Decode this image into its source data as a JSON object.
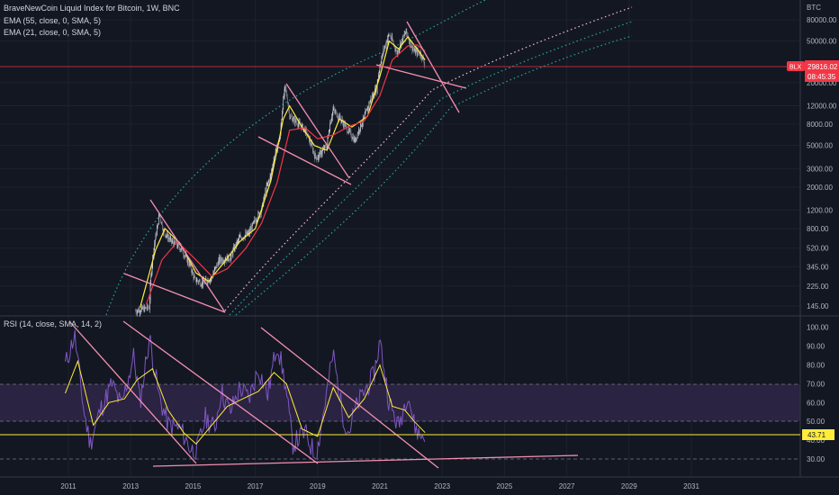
{
  "header": {
    "symbol_line": "BraveNewCoin Liquid Index for Bitcoin, 1W, BNC",
    "ema55": "EMA (55, close, 0, SMA, 5)",
    "ema21": "EMA (21, close, 0, SMA, 5)",
    "rsi_title": "RSI (14, close, SMA, 14, 2)"
  },
  "price_axis": {
    "currency": "BTC",
    "ticks": [
      "80000.00",
      "50000.00",
      "20000.00",
      "12000.00",
      "8000.00",
      "5000.00",
      "3000.00",
      "2000.00",
      "1200.00",
      "800.00",
      "520.00",
      "345.00",
      "225.00",
      "145.00"
    ],
    "last_label": "BLX",
    "last_price": "29816.02",
    "countdown": "08:45:35"
  },
  "rsi_axis": {
    "ticks": [
      "100.00",
      "90.00",
      "80.00",
      "70.00",
      "60.00",
      "50.00",
      "40.00",
      "30.00"
    ],
    "current": "43.71"
  },
  "time_axis": [
    "2011",
    "2013",
    "2015",
    "2017",
    "2019",
    "2021",
    "2023",
    "2025",
    "2027",
    "2029",
    "2031"
  ],
  "colors": {
    "background": "#131722",
    "candle_up": "#d1d4dc",
    "candle_down": "#787b86",
    "ema55": "#f23645",
    "ema21": "#ffeb3b",
    "trendline": "#f48fb1",
    "band_cyan": "#26a69a",
    "band_pink": "#f8bbd0",
    "rsi_line": "#7e57c2",
    "rsi_ma": "#ffeb3b",
    "rsi_band": "#2a2342",
    "price_badge": "#f23645"
  },
  "chart_data": [
    {
      "type": "line",
      "title": "BraveNewCoin Liquid Index for Bitcoin, 1W, BNC",
      "scale": "log",
      "ylim": [
        130,
        120000
      ],
      "xlim": [
        2010.2,
        2033.6
      ],
      "x_ticks": [
        2011,
        2013,
        2015,
        2017,
        2019,
        2021,
        2023,
        2025,
        2027,
        2029,
        2031
      ],
      "series": [
        {
          "name": "BraveNewCoin Liquid Index for Bitcoin",
          "x": [
            2013.15,
            2013.6,
            2013.85,
            2013.92,
            2014.05,
            2014.3,
            2014.6,
            2014.9,
            2015.05,
            2015.3,
            2015.6,
            2015.85,
            2016.2,
            2016.5,
            2016.8,
            2017.2,
            2017.5,
            2017.8,
            2017.96,
            2018.1,
            2018.3,
            2018.6,
            2018.9,
            2019.0,
            2019.3,
            2019.5,
            2019.9,
            2020.2,
            2020.5,
            2020.9,
            2021.0,
            2021.3,
            2021.55,
            2021.85,
            2021.97,
            2022.1,
            2022.3,
            2022.45
          ],
          "y": [
            130,
            140,
            800,
            1100,
            750,
            600,
            520,
            350,
            260,
            240,
            270,
            400,
            420,
            650,
            720,
            1200,
            2600,
            6000,
            18000,
            9500,
            8500,
            7000,
            4000,
            3800,
            5000,
            11000,
            7500,
            5500,
            9200,
            18000,
            29000,
            58000,
            38000,
            62000,
            47000,
            40000,
            38000,
            29816
          ]
        },
        {
          "name": "EMA 21",
          "x": [
            2013.3,
            2013.8,
            2014.1,
            2014.6,
            2015.1,
            2015.5,
            2016.0,
            2016.5,
            2017.0,
            2017.5,
            2017.9,
            2018.1,
            2018.5,
            2018.9,
            2019.3,
            2019.7,
            2020.1,
            2020.6,
            2021.0,
            2021.3,
            2021.6,
            2021.9,
            2022.2,
            2022.45
          ],
          "y": [
            140,
            500,
            800,
            570,
            300,
            250,
            380,
            600,
            800,
            2300,
            9000,
            12000,
            7500,
            5000,
            4500,
            9000,
            7500,
            9500,
            23000,
            50000,
            42000,
            55000,
            42000,
            33000
          ]
        },
        {
          "name": "EMA 55",
          "x": [
            2013.5,
            2014.0,
            2014.5,
            2015.1,
            2015.6,
            2016.1,
            2016.7,
            2017.2,
            2017.7,
            2018.1,
            2018.6,
            2019.0,
            2019.5,
            2020.0,
            2020.5,
            2021.0,
            2021.4,
            2021.9,
            2022.2,
            2022.45
          ],
          "y": [
            150,
            400,
            600,
            400,
            280,
            330,
            520,
            900,
            2200,
            7000,
            7400,
            5800,
            6300,
            7600,
            8600,
            15000,
            33000,
            45000,
            46000,
            40000
          ]
        }
      ],
      "last_price": 29816.02
    },
    {
      "type": "line",
      "title": "RSI (14, close, SMA, 14, 2)",
      "ylim": [
        22,
        108
      ],
      "bands": [
        30,
        50,
        70
      ],
      "current": 43.71,
      "series": [
        {
          "name": "RSI",
          "x": [
            2010.9,
            2011.2,
            2011.5,
            2011.7,
            2012.0,
            2012.4,
            2012.7,
            2013.1,
            2013.3,
            2013.6,
            2013.9,
            2014.2,
            2014.6,
            2014.9,
            2015.1,
            2015.4,
            2015.7,
            2015.9,
            2016.2,
            2016.5,
            2016.8,
            2017.1,
            2017.4,
            2017.7,
            2017.95,
            2018.2,
            2018.6,
            2018.95,
            2019.2,
            2019.5,
            2019.8,
            2020.0,
            2020.2,
            2020.5,
            2020.8,
            2021.0,
            2021.3,
            2021.6,
            2021.9,
            2022.1,
            2022.3,
            2022.45
          ],
          "y": [
            80,
            96,
            55,
            38,
            55,
            70,
            58,
            85,
            60,
            95,
            64,
            48,
            46,
            36,
            33,
            52,
            46,
            66,
            55,
            68,
            62,
            78,
            64,
            92,
            71,
            38,
            44,
            31,
            56,
            86,
            54,
            44,
            56,
            66,
            74,
            93,
            60,
            47,
            66,
            48,
            42,
            44
          ]
        },
        {
          "name": "RSI-based MA",
          "x": [
            2010.9,
            2011.3,
            2011.8,
            2012.3,
            2012.8,
            2013.2,
            2013.7,
            2014.2,
            2014.7,
            2015.1,
            2015.6,
            2016.1,
            2016.6,
            2017.1,
            2017.6,
            2018.0,
            2018.5,
            2019.0,
            2019.5,
            2020.0,
            2020.5,
            2021.0,
            2021.4,
            2021.8,
            2022.1,
            2022.45
          ],
          "y": [
            65,
            82,
            48,
            60,
            62,
            72,
            78,
            56,
            44,
            38,
            48,
            58,
            62,
            66,
            76,
            70,
            46,
            42,
            68,
            52,
            62,
            80,
            58,
            56,
            50,
            44
          ]
        }
      ]
    }
  ]
}
